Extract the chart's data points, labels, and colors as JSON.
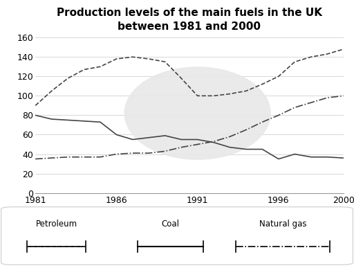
{
  "title": "Production levels of the main fuels in the UK\nbetween 1981 and 2000",
  "years": [
    1981,
    1982,
    1983,
    1984,
    1985,
    1986,
    1987,
    1988,
    1989,
    1990,
    1991,
    1992,
    1993,
    1994,
    1995,
    1996,
    1997,
    1998,
    1999,
    2000
  ],
  "petroleum": [
    80,
    76,
    75,
    74,
    73,
    60,
    55,
    57,
    59,
    55,
    55,
    52,
    47,
    45,
    45,
    35,
    40,
    37,
    37,
    36
  ],
  "coal": [
    90,
    105,
    118,
    127,
    130,
    138,
    140,
    138,
    135,
    118,
    100,
    100,
    102,
    105,
    112,
    120,
    135,
    140,
    143,
    148
  ],
  "natural_gas": [
    35,
    36,
    37,
    37,
    37,
    40,
    41,
    41,
    43,
    47,
    50,
    53,
    58,
    65,
    73,
    80,
    88,
    93,
    98,
    100
  ],
  "ylim": [
    0,
    160
  ],
  "yticks": [
    0,
    20,
    40,
    60,
    80,
    100,
    120,
    140,
    160
  ],
  "xticks": [
    1981,
    1986,
    1991,
    1996,
    2000
  ],
  "background_color": "#ffffff",
  "grid_color": "#d0d0d0",
  "line_color": "#444444",
  "title_fontsize": 11,
  "axis_fontsize": 9,
  "legend_fontsize": 8.5
}
